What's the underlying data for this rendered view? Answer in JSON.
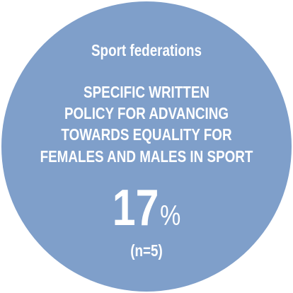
{
  "header": {
    "title": "Sport federations"
  },
  "heading": {
    "lines": [
      "SPECIFIC WRITTEN",
      "POLICY FOR ADVANCING",
      "TOWARDS EQUALITY FOR",
      "FEMALES AND MALES IN SPORT"
    ]
  },
  "stat": {
    "value": 17,
    "unit": "%",
    "note": "(n=5)"
  }
}
